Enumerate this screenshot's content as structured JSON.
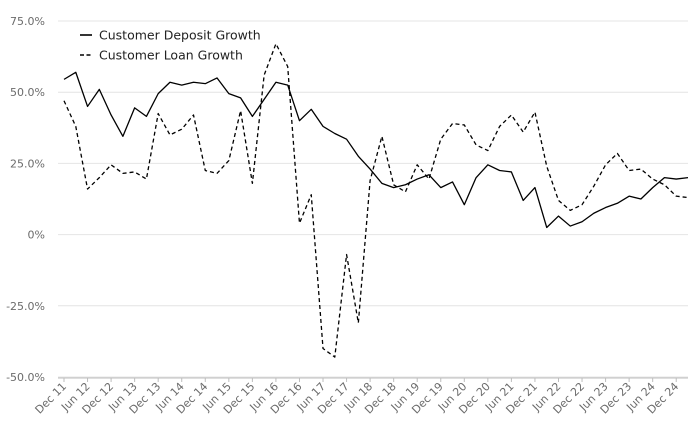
{
  "chart_data": {
    "type": "line",
    "title": "",
    "xlabel": "",
    "ylabel": "",
    "ylim": [
      -0.5,
      0.75
    ],
    "y_ticks": [
      {
        "value": 0.75,
        "label": "75.0%"
      },
      {
        "value": 0.5,
        "label": "50.0%"
      },
      {
        "value": 0.25,
        "label": "25.0%"
      },
      {
        "value": 0,
        "label": "0%"
      },
      {
        "value": -0.25,
        "label": "-25.0%"
      },
      {
        "value": -0.5,
        "label": "-50.0%"
      }
    ],
    "x_tick_labels": [
      "Dec 11",
      "Jun 12",
      "Dec 12",
      "Jun 13",
      "Dec 13",
      "Jun 14",
      "Dec 14",
      "Jun 15",
      "Dec 15",
      "Jun 16",
      "Dec 16",
      "Jun 17",
      "Dec 17",
      "Jun 18",
      "Dec 18",
      "Jun 19",
      "Dec 19",
      "Jun 20",
      "Dec 20",
      "Jun 21",
      "Dec 21",
      "Jun 22",
      "Dec 22",
      "Jun 23",
      "Dec 23",
      "Jun 24",
      "Dec 24"
    ],
    "x_start": "Dec 11",
    "x_interval": "quarter",
    "grid": "horizontal",
    "legend_position": "top-left",
    "series": [
      {
        "name": "Customer Deposit Growth",
        "style": "solid",
        "color": "#000000",
        "values": [
          0.545,
          0.57,
          0.45,
          0.51,
          0.42,
          0.345,
          0.445,
          0.415,
          0.495,
          0.535,
          0.525,
          0.535,
          0.53,
          0.55,
          0.495,
          0.48,
          0.415,
          0.475,
          0.535,
          0.525,
          0.4,
          0.44,
          0.38,
          0.355,
          0.335,
          0.275,
          0.23,
          0.18,
          0.165,
          0.175,
          0.195,
          0.21,
          0.165,
          0.185,
          0.105,
          0.2,
          0.245,
          0.225,
          0.22,
          0.12,
          0.165,
          0.025,
          0.065,
          0.03,
          0.045,
          0.075,
          0.095,
          0.11,
          0.135,
          0.125,
          0.165,
          0.2,
          0.195,
          0.2
        ]
      },
      {
        "name": "Customer Loan Growth",
        "style": "dashed",
        "color": "#000000",
        "values": [
          0.47,
          0.38,
          0.16,
          0.2,
          0.245,
          0.215,
          0.22,
          0.195,
          0.425,
          0.35,
          0.37,
          0.42,
          0.225,
          0.215,
          0.26,
          0.435,
          0.18,
          0.56,
          0.67,
          0.59,
          0.04,
          0.14,
          -0.4,
          -0.43,
          -0.07,
          -0.31,
          0.19,
          0.345,
          0.175,
          0.15,
          0.245,
          0.195,
          0.335,
          0.39,
          0.385,
          0.315,
          0.295,
          0.38,
          0.42,
          0.36,
          0.43,
          0.24,
          0.12,
          0.085,
          0.105,
          0.17,
          0.245,
          0.285,
          0.225,
          0.23,
          0.195,
          0.175,
          0.135,
          0.13
        ]
      }
    ]
  }
}
